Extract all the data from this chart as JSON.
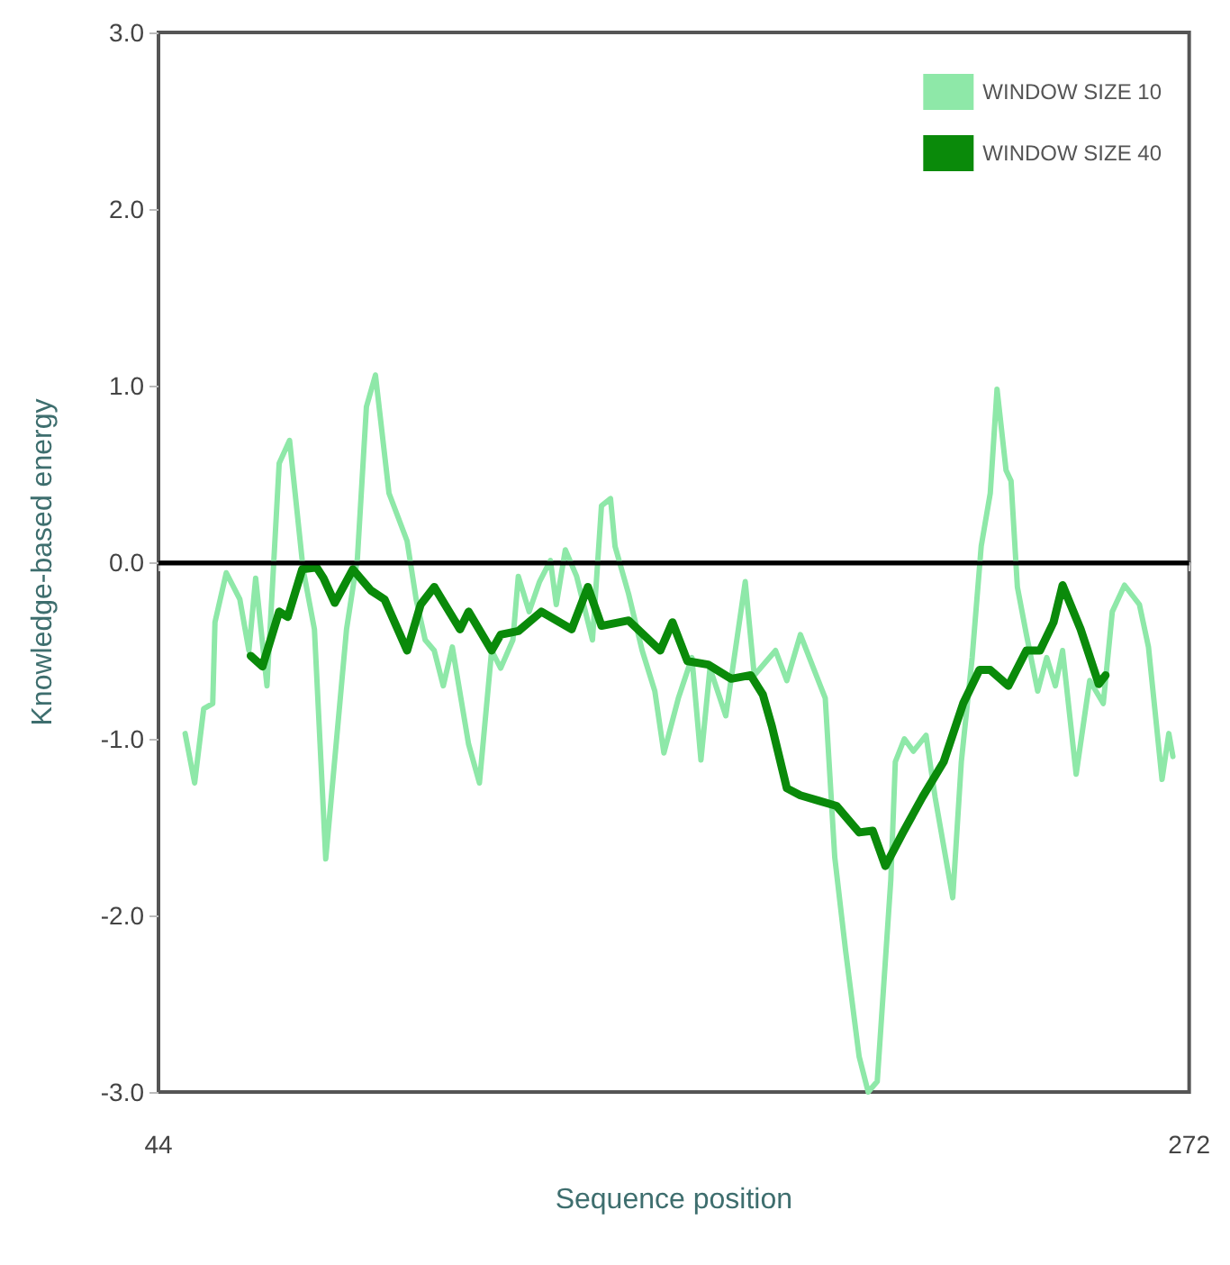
{
  "chart_data": {
    "type": "line",
    "xlabel": "Sequence position",
    "ylabel": "Knowledge-based energy",
    "xlim": [
      44,
      272
    ],
    "xticks": [
      44,
      272
    ],
    "ylim": [
      -3,
      3
    ],
    "yticks": [
      {
        "value": -3,
        "label": "-3.0"
      },
      {
        "value": -2,
        "label": "-2.0"
      },
      {
        "value": -1,
        "label": "-1.0"
      },
      {
        "value": 0,
        "label": "0.0"
      },
      {
        "value": 1,
        "label": "1.0"
      },
      {
        "value": 2,
        "label": "2.0"
      },
      {
        "value": 3,
        "label": "3.0"
      }
    ],
    "grid": false,
    "legend": "top right",
    "marker": "none",
    "line_style": "solid",
    "ref_lines": [
      {
        "axis": "y",
        "value": 0,
        "color": "#000000"
      }
    ],
    "series": [
      {
        "name": "WINDOW SIZE 10",
        "color": "#8ee8a8",
        "x": [
          49.9,
          52,
          54,
          56,
          56.5,
          59,
          62,
          64,
          65.5,
          68,
          70.7,
          73,
          76,
          78.5,
          81,
          85.6,
          88,
          90,
          92,
          95,
          99,
          101,
          103,
          105,
          107,
          109,
          112.6,
          115,
          117.7,
          119.7,
          122.4,
          123.6,
          126,
          128.3,
          130.7,
          132,
          134,
          136.5,
          140,
          142,
          144,
          145,
          148,
          151,
          153.8,
          155.8,
          159,
          162,
          164,
          166,
          169.5,
          173.8,
          175.8,
          180.5,
          183,
          186,
          189.5,
          191.5,
          193.6,
          196,
          199,
          201,
          203,
          206,
          207,
          209,
          211,
          213.8,
          215.8,
          219.7,
          221.6,
          224,
          226,
          228,
          229.5,
          231.5,
          232.6,
          234,
          236,
          238.5,
          240.5,
          242.4,
          244,
          247,
          250,
          253,
          255,
          257.7,
          261,
          263,
          266,
          267.5,
          268.4
        ],
        "values": [
          -0.97,
          -1.25,
          -0.83,
          -0.8,
          -0.34,
          -0.06,
          -0.21,
          -0.5,
          -0.09,
          -0.7,
          0.56,
          0.69,
          -0.04,
          -0.38,
          -1.68,
          -0.38,
          0.02,
          0.88,
          1.06,
          0.39,
          0.12,
          -0.21,
          -0.44,
          -0.5,
          -0.7,
          -0.48,
          -1.03,
          -1.25,
          -0.5,
          -0.6,
          -0.44,
          -0.08,
          -0.28,
          -0.11,
          0.01,
          -0.24,
          0.07,
          -0.08,
          -0.44,
          0.32,
          0.36,
          0.09,
          -0.18,
          -0.5,
          -0.73,
          -1.08,
          -0.77,
          -0.54,
          -1.12,
          -0.6,
          -0.87,
          -0.11,
          -0.64,
          -0.5,
          -0.67,
          -0.41,
          -0.64,
          -0.77,
          -1.67,
          -2.2,
          -2.8,
          -3.0,
          -2.94,
          -1.8,
          -1.13,
          -1.0,
          -1.07,
          -0.98,
          -1.33,
          -1.9,
          -1.13,
          -0.54,
          0.09,
          0.39,
          0.98,
          0.52,
          0.46,
          -0.14,
          -0.41,
          -0.73,
          -0.54,
          -0.7,
          -0.5,
          -1.2,
          -0.67,
          -0.8,
          -0.28,
          -0.13,
          -0.24,
          -0.48,
          -1.23,
          -0.97,
          -1.1
        ]
      },
      {
        "name": "WINDOW SIZE 40",
        "color": "#0a8a0a",
        "x": [
          64.4,
          67,
          70.7,
          72.6,
          75.8,
          79,
          80.5,
          83,
          87,
          91,
          94,
          99,
          102,
          105,
          110.7,
          112.6,
          117.7,
          119.7,
          123.6,
          128.7,
          135.4,
          139,
          142,
          148,
          155,
          157.7,
          161,
          165.6,
          170.7,
          175,
          177.7,
          179.7,
          183,
          186,
          190,
          194,
          199,
          202,
          204.8,
          208.7,
          213,
          217.7,
          222,
          225.6,
          228,
          232,
          236,
          239,
          242,
          244,
          248,
          252,
          253.5
        ],
        "values": [
          -0.53,
          -0.59,
          -0.28,
          -0.31,
          -0.04,
          -0.03,
          -0.09,
          -0.23,
          -0.04,
          -0.16,
          -0.21,
          -0.5,
          -0.24,
          -0.14,
          -0.38,
          -0.28,
          -0.5,
          -0.41,
          -0.39,
          -0.28,
          -0.38,
          -0.14,
          -0.36,
          -0.33,
          -0.5,
          -0.34,
          -0.56,
          -0.58,
          -0.66,
          -0.64,
          -0.75,
          -0.93,
          -1.28,
          -1.32,
          -1.35,
          -1.38,
          -1.53,
          -1.52,
          -1.72,
          -1.53,
          -1.33,
          -1.13,
          -0.8,
          -0.61,
          -0.61,
          -0.7,
          -0.5,
          -0.5,
          -0.34,
          -0.13,
          -0.38,
          -0.69,
          -0.64
        ]
      }
    ]
  }
}
